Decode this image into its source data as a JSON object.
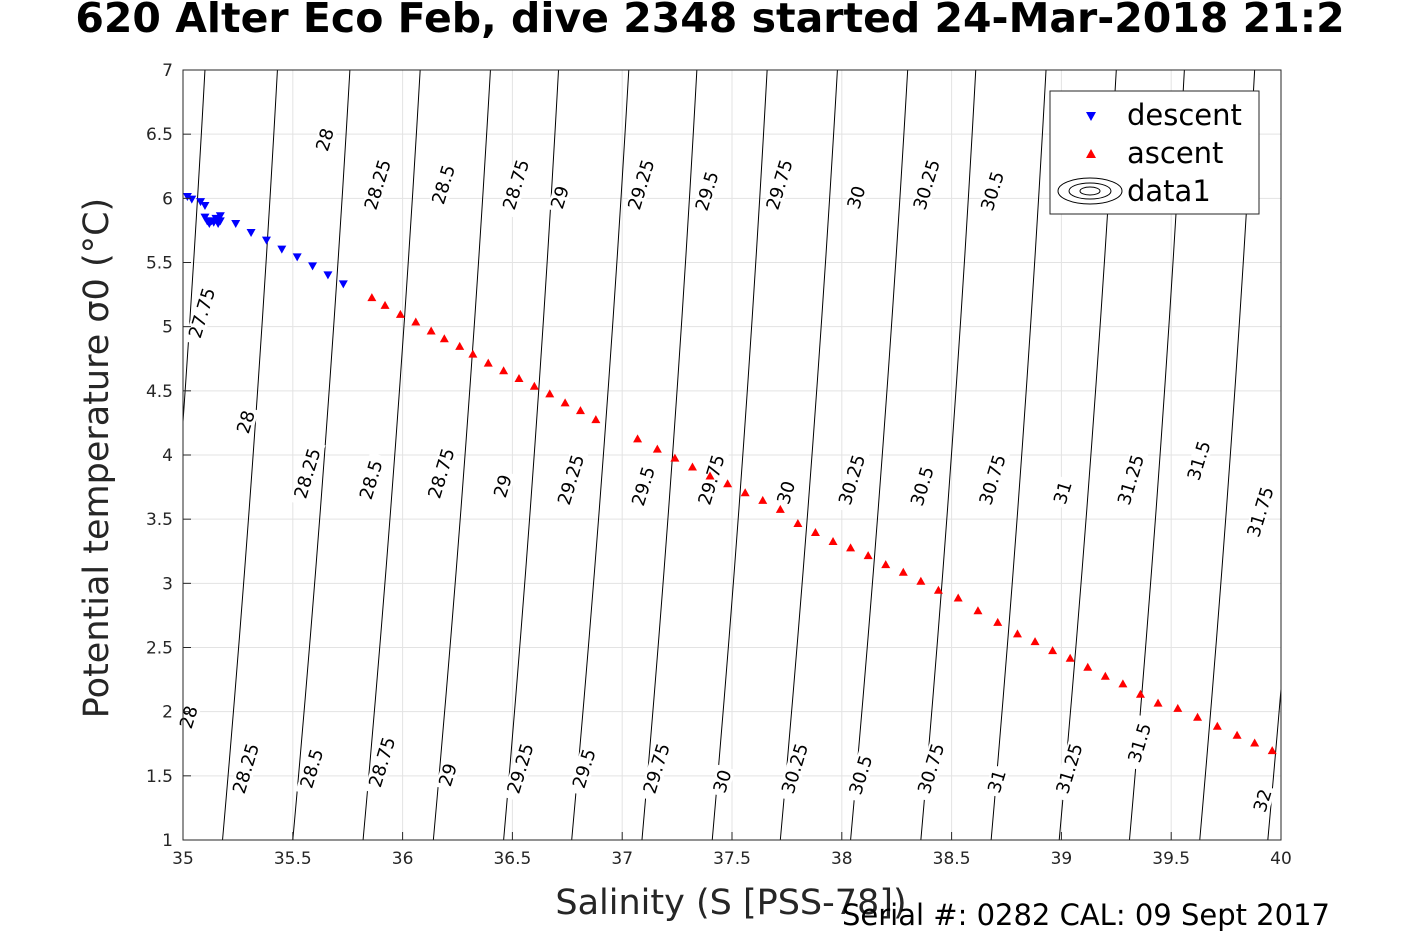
{
  "title": "620 Alter Eco Feb, dive 2348 started 24-Mar-2018 21:2",
  "footer": "Serial #: 0282  CAL: 09 Sept 2017",
  "chart_data": {
    "type": "scatter",
    "title": "620 Alter Eco Feb, dive 2348 started 24-Mar-2018 21:2",
    "xlabel": "Salinity (S [PSS-78])",
    "ylabel": "Potential temperature σ0 (°C)",
    "xlim": [
      35,
      40
    ],
    "ylim": [
      1,
      7
    ],
    "xticks": [
      "35",
      "35.5",
      "36",
      "36.5",
      "37",
      "37.5",
      "38",
      "38.5",
      "39",
      "39.5",
      "40"
    ],
    "yticks": [
      "1",
      "1.5",
      "2",
      "2.5",
      "3",
      "3.5",
      "4",
      "4.5",
      "5",
      "5.5",
      "6",
      "6.5",
      "7"
    ],
    "grid": true,
    "legend_position": "top-right",
    "series": [
      {
        "name": "descent",
        "marker": "triangle-down",
        "color": "#0000ff",
        "x": [
          35.02,
          35.04,
          35.08,
          35.1,
          35.1,
          35.11,
          35.12,
          35.13,
          35.14,
          35.15,
          35.16,
          35.17,
          35.17,
          35.24,
          35.31,
          35.38,
          35.45,
          35.52,
          35.59,
          35.66,
          35.73
        ],
        "y": [
          6.01,
          5.99,
          5.97,
          5.94,
          5.85,
          5.82,
          5.8,
          5.82,
          5.81,
          5.84,
          5.8,
          5.82,
          5.86,
          5.8,
          5.73,
          5.67,
          5.6,
          5.54,
          5.47,
          5.4,
          5.33
        ]
      },
      {
        "name": "ascent",
        "marker": "triangle-up",
        "color": "#ff0000",
        "x": [
          35.86,
          35.92,
          35.99,
          36.06,
          36.13,
          36.19,
          36.26,
          36.32,
          36.39,
          36.46,
          36.53,
          36.6,
          36.67,
          36.74,
          36.81,
          36.88,
          37.07,
          37.16,
          37.24,
          37.32,
          37.4,
          37.48,
          37.56,
          37.64,
          37.72,
          37.8,
          37.88,
          37.96,
          38.04,
          38.12,
          38.2,
          38.28,
          38.36,
          38.44,
          38.53,
          38.62,
          38.71,
          38.8,
          38.88,
          38.96,
          39.04,
          39.12,
          39.2,
          39.28,
          39.36,
          39.44,
          39.53,
          39.62,
          39.71,
          39.8,
          39.88,
          39.96
        ],
        "y": [
          5.23,
          5.17,
          5.1,
          5.04,
          4.97,
          4.91,
          4.85,
          4.79,
          4.72,
          4.66,
          4.6,
          4.54,
          4.48,
          4.41,
          4.35,
          4.28,
          4.13,
          4.05,
          3.98,
          3.91,
          3.84,
          3.78,
          3.71,
          3.65,
          3.58,
          3.47,
          3.4,
          3.33,
          3.28,
          3.22,
          3.15,
          3.09,
          3.02,
          2.95,
          2.89,
          2.79,
          2.7,
          2.61,
          2.55,
          2.48,
          2.42,
          2.35,
          2.28,
          2.22,
          2.14,
          2.07,
          2.03,
          1.96,
          1.89,
          1.82,
          1.76,
          1.7
        ]
      }
    ],
    "contours": {
      "name": "data1",
      "levels": [
        "27.75",
        "28",
        "28.25",
        "28.5",
        "28.75",
        "29",
        "29.25",
        "29.5",
        "29.75",
        "30",
        "30.25",
        "30.5",
        "30.75",
        "31",
        "31.25",
        "31.5",
        "31.75",
        "32"
      ],
      "lines": [
        {
          "level": 27.75,
          "x": [
            34.85,
            35.1
          ]
        },
        {
          "level": 28.0,
          "x": [
            35.18,
            35.43
          ]
        },
        {
          "level": 28.25,
          "x": [
            35.5,
            35.76
          ]
        },
        {
          "level": 28.5,
          "x": [
            35.82,
            36.08
          ]
        },
        {
          "level": 28.75,
          "x": [
            36.14,
            36.4
          ]
        },
        {
          "level": 29.0,
          "x": [
            36.46,
            36.71
          ]
        },
        {
          "level": 29.25,
          "x": [
            36.77,
            37.03
          ]
        },
        {
          "level": 29.5,
          "x": [
            37.09,
            37.34
          ]
        },
        {
          "level": 29.75,
          "x": [
            37.41,
            37.66
          ]
        },
        {
          "level": 30.0,
          "x": [
            37.72,
            37.98
          ]
        },
        {
          "level": 30.25,
          "x": [
            38.04,
            38.3
          ]
        },
        {
          "level": 30.5,
          "x": [
            38.36,
            38.61
          ]
        },
        {
          "level": 30.75,
          "x": [
            38.68,
            38.93
          ]
        },
        {
          "level": 31.0,
          "x": [
            38.99,
            39.25
          ]
        },
        {
          "level": 31.25,
          "x": [
            39.31,
            39.56
          ]
        },
        {
          "level": 31.5,
          "x": [
            39.63,
            39.88
          ]
        },
        {
          "level": 31.75,
          "x": [
            39.94,
            40.2
          ]
        },
        {
          "level": 32.0,
          "x": [
            40.26,
            40.51
          ]
        }
      ],
      "labels": [
        {
          "text": "28",
          "x": 35.66,
          "y": 6.45
        },
        {
          "text": "28.25",
          "x": 35.9,
          "y": 6.1
        },
        {
          "text": "28.5",
          "x": 36.2,
          "y": 6.1
        },
        {
          "text": "28.75",
          "x": 36.53,
          "y": 6.1
        },
        {
          "text": "29",
          "x": 36.73,
          "y": 6.0
        },
        {
          "text": "29.25",
          "x": 37.1,
          "y": 6.1
        },
        {
          "text": "29.5",
          "x": 37.4,
          "y": 6.05
        },
        {
          "text": "29.75",
          "x": 37.73,
          "y": 6.1
        },
        {
          "text": "30",
          "x": 38.08,
          "y": 6.0
        },
        {
          "text": "30.25",
          "x": 38.4,
          "y": 6.1
        },
        {
          "text": "30.5",
          "x": 38.7,
          "y": 6.05
        },
        {
          "text": "27.75",
          "x": 35.1,
          "y": 5.1
        },
        {
          "text": "28",
          "x": 35.3,
          "y": 4.25
        },
        {
          "text": "28.25",
          "x": 35.58,
          "y": 3.85
        },
        {
          "text": "28.5",
          "x": 35.87,
          "y": 3.8
        },
        {
          "text": "28.75",
          "x": 36.19,
          "y": 3.85
        },
        {
          "text": "29",
          "x": 36.47,
          "y": 3.75
        },
        {
          "text": "29.25",
          "x": 36.78,
          "y": 3.8
        },
        {
          "text": "29.5",
          "x": 37.11,
          "y": 3.75
        },
        {
          "text": "29.75",
          "x": 37.42,
          "y": 3.8
        },
        {
          "text": "30",
          "x": 37.76,
          "y": 3.7
        },
        {
          "text": "30.25",
          "x": 38.06,
          "y": 3.8
        },
        {
          "text": "30.5",
          "x": 38.38,
          "y": 3.75
        },
        {
          "text": "30.75",
          "x": 38.7,
          "y": 3.8
        },
        {
          "text": "31",
          "x": 39.02,
          "y": 3.7
        },
        {
          "text": "31.25",
          "x": 39.33,
          "y": 3.8
        },
        {
          "text": "31.5",
          "x": 39.64,
          "y": 3.95
        },
        {
          "text": "31.75",
          "x": 39.92,
          "y": 3.55
        },
        {
          "text": "28",
          "x": 35.04,
          "y": 1.95
        },
        {
          "text": "28.25",
          "x": 35.3,
          "y": 1.55
        },
        {
          "text": "28.5",
          "x": 35.6,
          "y": 1.55
        },
        {
          "text": "28.75",
          "x": 35.92,
          "y": 1.6
        },
        {
          "text": "29",
          "x": 36.22,
          "y": 1.5
        },
        {
          "text": "29.25",
          "x": 36.55,
          "y": 1.55
        },
        {
          "text": "29.5",
          "x": 36.84,
          "y": 1.55
        },
        {
          "text": "29.75",
          "x": 37.17,
          "y": 1.55
        },
        {
          "text": "30",
          "x": 37.47,
          "y": 1.45
        },
        {
          "text": "30.25",
          "x": 37.8,
          "y": 1.55
        },
        {
          "text": "30.5",
          "x": 38.1,
          "y": 1.5
        },
        {
          "text": "30.75",
          "x": 38.42,
          "y": 1.55
        },
        {
          "text": "31",
          "x": 38.72,
          "y": 1.45
        },
        {
          "text": "31.25",
          "x": 39.05,
          "y": 1.55
        },
        {
          "text": "31.5",
          "x": 39.37,
          "y": 1.75
        },
        {
          "text": "32",
          "x": 39.93,
          "y": 1.3
        }
      ]
    }
  }
}
